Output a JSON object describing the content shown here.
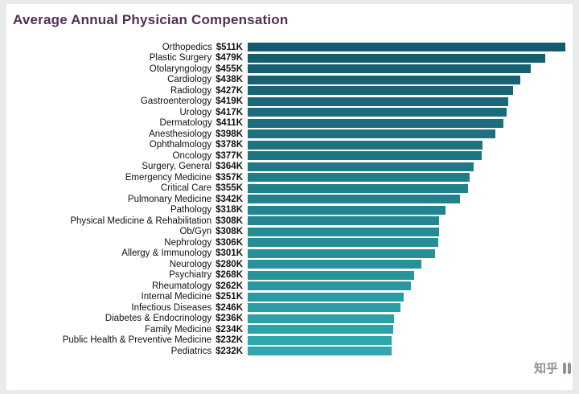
{
  "title": "Average Annual Physician Compensation",
  "colors": {
    "title_text": "#572c58",
    "bar_color_top": "#145a6d",
    "bar_color_bottom": "#2fa9ae",
    "label_text": "#111111",
    "card_background": "#ffffff",
    "frame_background": "#e9eaea",
    "watermark_text": "#8f9396"
  },
  "watermark": {
    "text": "知乎"
  },
  "chart_data": {
    "type": "bar",
    "orientation": "horizontal",
    "title": "Average Annual Physician Compensation",
    "sort": "descending",
    "xlim": [
      0,
      511
    ],
    "grid": false,
    "legend": "none",
    "categories": [
      "Orthopedics",
      "Plastic Surgery",
      "Otolaryngology",
      "Cardiology",
      "Radiology",
      "Gastroenterology",
      "Urology",
      "Dermatology",
      "Anesthesiology",
      "Ophthalmology",
      "Oncology",
      "Surgery, General",
      "Emergency Medicine",
      "Critical Care",
      "Pulmonary Medicine",
      "Pathology",
      "Physical Medicine & Rehabilitation",
      "Ob/Gyn",
      "Nephrology",
      "Allergy & Immunology",
      "Neurology",
      "Psychiatry",
      "Rheumatology",
      "Internal Medicine",
      "Infectious Diseases",
      "Diabetes & Endocrinology",
      "Family Medicine",
      "Public Health & Preventive Medicine",
      "Pediatrics"
    ],
    "values": [
      511,
      479,
      455,
      438,
      427,
      419,
      417,
      411,
      398,
      378,
      377,
      364,
      357,
      355,
      342,
      318,
      308,
      308,
      306,
      301,
      280,
      268,
      262,
      251,
      246,
      236,
      234,
      232,
      232
    ],
    "value_labels": [
      "$511K",
      "$479K",
      "$455K",
      "$438K",
      "$427K",
      "$419K",
      "$417K",
      "$411K",
      "$398K",
      "$378K",
      "$377K",
      "$364K",
      "$357K",
      "$355K",
      "$342K",
      "$318K",
      "$308K",
      "$308K",
      "$306K",
      "$301K",
      "$280K",
      "$268K",
      "$262K",
      "$251K",
      "$246K",
      "$236K",
      "$234K",
      "$232K",
      "$232K"
    ]
  }
}
